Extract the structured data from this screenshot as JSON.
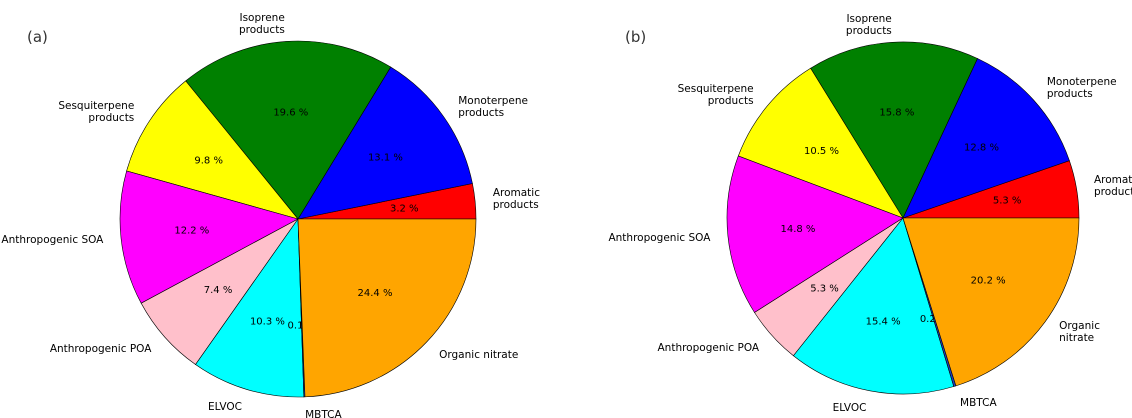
{
  "chart_data": [
    {
      "type": "pie",
      "title": "(a)",
      "labels": [
        "Aromatic\nproducts",
        "Monoterpene\nproducts",
        "Isoprene\nproducts",
        "Sesquiterpene\nproducts",
        "Anthropogenic SOA",
        "Anthropogenic POA",
        "ELVOC",
        "MBTCA",
        "Organic nitrate"
      ],
      "values": [
        3.2,
        13.1,
        19.6,
        9.8,
        12.2,
        7.4,
        10.3,
        0.1,
        24.4
      ],
      "value_labels": [
        "3.2 %",
        "13.1 %",
        "19.6 %",
        "9.8 %",
        "12.2 %",
        "7.4 %",
        "10.3 %",
        "0.1 %",
        "24.4 %"
      ],
      "colors": [
        "#ff0000",
        "#0000ff",
        "#008000",
        "#ffff00",
        "#ff00ff",
        "#ffc0cb",
        "#00ffff",
        "#1f3fbf",
        "#ffa500"
      ]
    },
    {
      "type": "pie",
      "title": "(b)",
      "labels": [
        "Aromatic\nproducts",
        "Monoterpene\nproducts",
        "Isoprene\nproducts",
        "Sesquiterpene\nproducts",
        "Anthropogenic SOA",
        "Anthropogenic POA",
        "ELVOC",
        "MBTCA",
        "Organic nitrate"
      ],
      "values": [
        5.3,
        12.8,
        15.8,
        10.5,
        14.8,
        5.3,
        15.4,
        0.2,
        20.2
      ],
      "value_labels": [
        "5.3 %",
        "12.8 %",
        "15.8 %",
        "10.5 %",
        "14.8 %",
        "5.3 %",
        "15.4 %",
        "0.2 %",
        "20.2 %"
      ],
      "colors": [
        "#ff0000",
        "#0000ff",
        "#008000",
        "#ffff00",
        "#ff00ff",
        "#ffc0cb",
        "#00ffff",
        "#1f3fbf",
        "#ffa500"
      ]
    }
  ]
}
